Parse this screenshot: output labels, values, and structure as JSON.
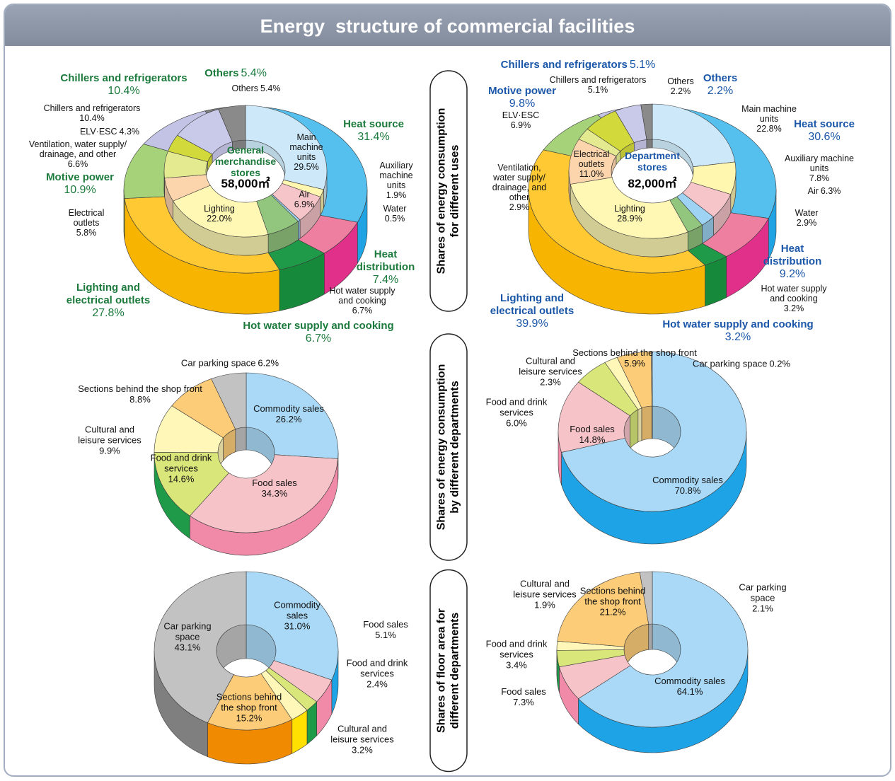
{
  "title": "Energy  structure of commercial facilities",
  "section_labels": [
    [
      "Shares of energy consumption",
      "for different uses"
    ],
    [
      "Shares of energy consumption",
      "by different departments"
    ],
    [
      "Shares of floor area for",
      "different departments"
    ]
  ],
  "chart_data": [
    {
      "type": "nested_donut",
      "title": "General merchandise stores",
      "subtitle": "58,000㎡",
      "label_color": "#1b7a3c",
      "series": [
        {
          "categories": [
            "Heat source",
            "Heat distribution",
            "Hot water supply and cooking",
            "Lighting and electrical outlets",
            "Motive power",
            "Chillers and refrigerators",
            "Others"
          ],
          "values": [
            31.4,
            7.4,
            6.7,
            27.8,
            10.9,
            10.4,
            5.4
          ],
          "value_labels": [
            "31.4%",
            "7.4%",
            "6.7%",
            "27.8%",
            "10.9%",
            "10.4%",
            "5.4%"
          ],
          "colors": [
            "#55bfee",
            "#ee7fa0",
            "#1f9a48",
            "#ffc933",
            "#a6d27a",
            "#c3c3e6",
            "#7f7f7f"
          ],
          "side_colors": [
            "#1fa3e3",
            "#e0308a",
            "#168a3a",
            "#f7b400",
            "#7fb85a",
            "#9d9dcc",
            "#5f5f5f"
          ]
        },
        {
          "categories": [
            "Main machine units",
            "Auxiliary machine units",
            "Air",
            "Water",
            "Hot water supply and cooking",
            "Lighting",
            "Electrical outlets",
            "Ventilation, water supply/ drainage, and other",
            "ELV·ESC",
            "Chillers and refrigerators",
            "Others"
          ],
          "values": [
            29.5,
            1.9,
            6.9,
            0.5,
            6.7,
            22.0,
            5.8,
            6.6,
            4.3,
            10.4,
            5.4
          ],
          "value_labels": [
            "29.5%",
            "1.9%",
            "6.9%",
            "0.5%",
            "6.7%",
            "22.0%",
            "5.8%",
            "6.6%",
            "4.3%",
            "10.4%",
            "5.4%"
          ],
          "colors": [
            "#cde9f9",
            "#fff6b0",
            "#f6c5c9",
            "#9fd3f3",
            "#92c57e",
            "#fff7b4",
            "#fdd5ad",
            "#e3ea8f",
            "#d2d93a",
            "#c9c9ea",
            "#8a8a8a"
          ]
        }
      ]
    },
    {
      "type": "nested_donut",
      "title": "Department stores",
      "subtitle": "82,000㎡",
      "label_color": "#1b57a8",
      "series": [
        {
          "categories": [
            "Heat source",
            "Heat distribution",
            "Hot water supply and cooking",
            "Lighting and electrical outlets",
            "Motive power",
            "Chillers and refrigerators",
            "Others"
          ],
          "values": [
            30.6,
            9.2,
            3.2,
            39.9,
            9.8,
            5.1,
            2.2
          ],
          "value_labels": [
            "30.6%",
            "9.2%",
            "3.2%",
            "39.9%",
            "9.8%",
            "5.1%",
            "2.2%"
          ],
          "colors": [
            "#55bfee",
            "#ee7fa0",
            "#1f9a48",
            "#ffc933",
            "#a6d27a",
            "#c3c3e6",
            "#7f7f7f"
          ],
          "side_colors": [
            "#1fa3e3",
            "#e0308a",
            "#168a3a",
            "#f7b400",
            "#7fb85a",
            "#9d9dcc",
            "#5f5f5f"
          ]
        },
        {
          "categories": [
            "Main machine units",
            "Auxiliary machine units",
            "Air",
            "Water",
            "Hot water supply and cooking",
            "Lighting",
            "Electrical outlets",
            "Ventilation, water supply/ drainage, and other",
            "ELV·ESC",
            "Chillers and refrigerators",
            "Others"
          ],
          "values": [
            22.8,
            7.8,
            6.3,
            2.9,
            3.2,
            28.9,
            11.0,
            2.9,
            6.9,
            5.1,
            2.2
          ],
          "value_labels": [
            "22.8%",
            "7.8%",
            "6.3%",
            "2.9%",
            "3.2%",
            "28.9%",
            "11.0%",
            "2.9%",
            "6.9%",
            "5.1%",
            "2.2%"
          ],
          "colors": [
            "#cde9f9",
            "#fff6b0",
            "#f6c5c9",
            "#9fd3f3",
            "#92c57e",
            "#fff7b4",
            "#fdd5ad",
            "#e3ea8f",
            "#d2d93a",
            "#c9c9ea",
            "#8a8a8a"
          ]
        }
      ]
    },
    {
      "type": "donut",
      "categories": [
        "Commodity sales",
        "Food sales",
        "Food and drink services",
        "Cultural and leisure services",
        "Sections behind the shop front",
        "Car parking space"
      ],
      "values": [
        26.2,
        34.3,
        14.6,
        9.9,
        8.8,
        6.2
      ],
      "value_labels": [
        "26.2%",
        "34.3%",
        "14.6%",
        "9.9%",
        "8.8%",
        "6.2%"
      ],
      "colors": [
        "#a9d9f6",
        "#f6c3c8",
        "#d9e67a",
        "#fff7b8",
        "#fccc78",
        "#c2c2c2"
      ],
      "side_colors": [
        "#1ea3e6",
        "#f08aa8",
        "#1f9a48",
        "#ffe000",
        "#f08a00",
        "#7f7f7f"
      ]
    },
    {
      "type": "donut",
      "categories": [
        "Commodity sales",
        "Food sales",
        "Food and drink services",
        "Cultural and leisure services",
        "Sections behind the shop front",
        "Car parking space"
      ],
      "values": [
        70.8,
        14.8,
        6.0,
        2.3,
        5.9,
        0.2
      ],
      "value_labels": [
        "70.8%",
        "14.8%",
        "6.0%",
        "2.3%",
        "5.9%",
        "0.2%"
      ],
      "colors": [
        "#a9d9f6",
        "#f6c3c8",
        "#d9e67a",
        "#fff7b8",
        "#fccc78",
        "#c2c2c2"
      ],
      "side_colors": [
        "#1ea3e6",
        "#f08aa8",
        "#1f9a48",
        "#ffe000",
        "#f08a00",
        "#7f7f7f"
      ]
    },
    {
      "type": "donut",
      "categories": [
        "Commodity sales",
        "Food sales",
        "Food and drink services",
        "Cultural and leisure services",
        "Sections behind the shop front",
        "Car parking space"
      ],
      "values": [
        31.0,
        5.1,
        2.4,
        3.2,
        15.2,
        43.1
      ],
      "value_labels": [
        "31.0%",
        "5.1%",
        "2.4%",
        "3.2%",
        "15.2%",
        "43.1%"
      ],
      "colors": [
        "#a9d9f6",
        "#f6c3c8",
        "#d9e67a",
        "#fff7b8",
        "#fccc78",
        "#c2c2c2"
      ],
      "side_colors": [
        "#1ea3e6",
        "#f08aa8",
        "#1f9a48",
        "#ffe000",
        "#f08a00",
        "#7f7f7f"
      ]
    },
    {
      "type": "donut",
      "categories": [
        "Commodity sales",
        "Food sales",
        "Food and drink services",
        "Cultural and leisure services",
        "Sections behind the shop front",
        "Car parking space"
      ],
      "values": [
        64.1,
        7.3,
        3.4,
        1.9,
        21.2,
        2.1
      ],
      "value_labels": [
        "64.1%",
        "7.3%",
        "3.4%",
        "1.9%",
        "21.2%",
        "2.1%"
      ],
      "colors": [
        "#a9d9f6",
        "#f6c3c8",
        "#d9e67a",
        "#fff7b8",
        "#fccc78",
        "#c2c2c2"
      ],
      "side_colors": [
        "#1ea3e6",
        "#f08aa8",
        "#1f9a48",
        "#ffe000",
        "#f08a00",
        "#7f7f7f"
      ]
    }
  ]
}
